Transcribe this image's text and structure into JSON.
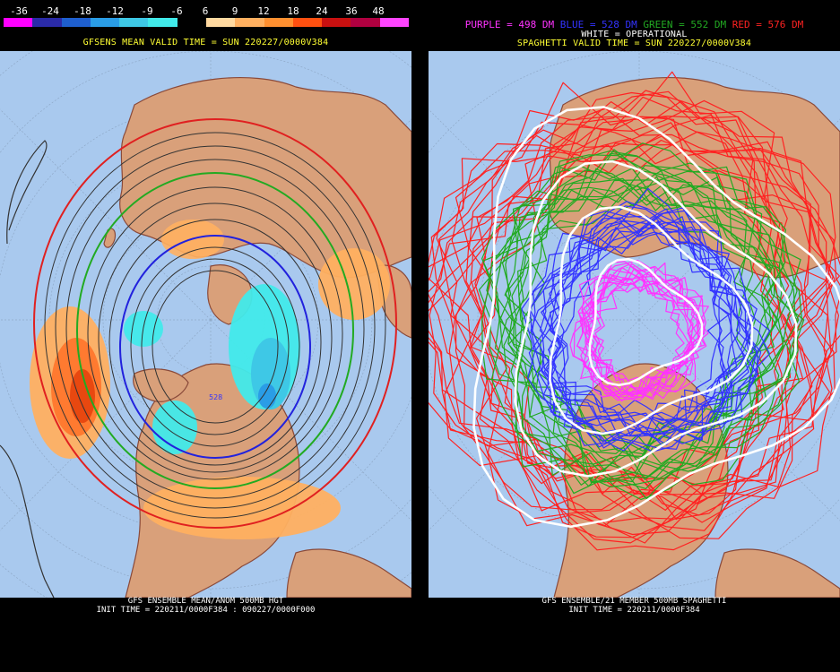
{
  "left": {
    "colorbar": {
      "labels": [
        "-36",
        "-24",
        "-18",
        "-12",
        "-9",
        "-6",
        "6",
        "9",
        "12",
        "18",
        "24",
        "36",
        "48"
      ],
      "colors": [
        "#ff00ff",
        "#2a2aa8",
        "#1e5fcf",
        "#2a9de6",
        "#3ec8e6",
        "#41eaea",
        "#000000",
        "#ffd9a0",
        "#ffb060",
        "#ff9030",
        "#ff5010",
        "#c81010",
        "#b00040",
        "#ff44ff"
      ]
    },
    "title": "GFSENS MEAN VALID TIME = SUN 220227/0000V384",
    "contour_label": "528",
    "footer_line1": "GFS ENSEMBLE MEAN/ANOM 500MB HGT",
    "footer_line2": "INIT TIME = 220211/0000F384 : 090227/0000F000"
  },
  "right": {
    "legend": [
      {
        "text": "PURPLE = 498 DM",
        "color": "#ff33ff"
      },
      {
        "text": "BLUE = 528 DM",
        "color": "#3333ff"
      },
      {
        "text": "GREEN = 552 DM",
        "color": "#22aa22"
      },
      {
        "text": "RED = 576 DM",
        "color": "#ff2222"
      }
    ],
    "operational": "WHITE = OPERATIONAL",
    "title": "SPAGHETTI VALID TIME = SUN 220227/0000V384",
    "footer_line1": "GFS ENSEMBLE/21 MEMBER 500MB SPAGHETTI",
    "footer_line2": "INIT TIME = 220211/0000F384"
  },
  "colors": {
    "ocean": "#a9c9ee",
    "land": "#d9a07a",
    "coast": "#8a4a3a"
  }
}
